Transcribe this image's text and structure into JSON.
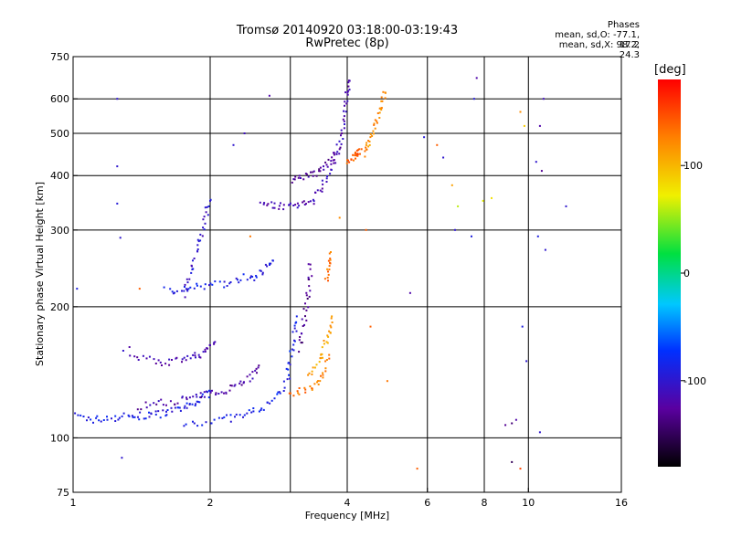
{
  "chart_data": {
    "type": "scatter",
    "title": "Tromsø 20140920 03:18:00-03:19:43",
    "subtitle": "RwPretec (8p)",
    "xlabel": "Frequency [MHz]",
    "ylabel": "Stationary phase Virtual Height [km]",
    "x_scale": "log",
    "y_scale": "log",
    "xlim": [
      1,
      16
    ],
    "ylim": [
      75,
      750
    ],
    "x_ticks": [
      1,
      2,
      4,
      6,
      8,
      10,
      16
    ],
    "x_tick_labels": [
      "1",
      "2",
      "4",
      "6",
      "8",
      "10",
      "16"
    ],
    "y_ticks": [
      75,
      100,
      200,
      300,
      400,
      500,
      600,
      750
    ],
    "y_tick_labels": [
      "75",
      "100",
      "200",
      "300",
      "400",
      "500",
      "600",
      "750"
    ],
    "x_grid": [
      2,
      3,
      4,
      6,
      8,
      10
    ],
    "y_grid": [
      100,
      200,
      300,
      400,
      500,
      600
    ],
    "legend_title": "Phases",
    "stats": [
      "mean, sd,O: -77.1, 17.2",
      "mean, sd,X: 98.2, 24.3"
    ],
    "colorbar": {
      "label": "[deg]",
      "range": [
        -180,
        180
      ],
      "ticks": [
        100,
        0,
        -100
      ],
      "tick_labels": [
        "100",
        "0",
        "-100"
      ]
    },
    "traces": [
      {
        "name": "",
        "phase": -90,
        "points": [
          [
            1.02,
            112
          ],
          [
            1.1,
            110
          ],
          [
            1.2,
            111
          ],
          [
            1.3,
            112
          ],
          [
            1.4,
            112
          ],
          [
            1.5,
            113
          ],
          [
            1.6,
            114
          ],
          [
            1.7,
            116
          ],
          [
            1.8,
            118
          ],
          [
            1.9,
            122
          ],
          [
            2.0,
            128
          ]
        ]
      },
      {
        "name": "",
        "phase": -120,
        "points": [
          [
            1.4,
            118
          ],
          [
            1.55,
            120
          ],
          [
            1.7,
            122
          ],
          [
            1.85,
            124
          ],
          [
            2.0,
            126
          ],
          [
            2.15,
            129
          ],
          [
            2.3,
            133
          ],
          [
            2.45,
            138
          ],
          [
            2.55,
            145
          ]
        ]
      },
      {
        "name": "",
        "phase": -115,
        "points": [
          [
            1.3,
            160
          ],
          [
            1.45,
            151
          ],
          [
            1.6,
            149
          ],
          [
            1.75,
            150
          ],
          [
            1.85,
            154
          ],
          [
            1.95,
            158
          ],
          [
            2.05,
            166
          ]
        ]
      },
      {
        "name": "",
        "phase": -85,
        "points": [
          [
            1.75,
            108
          ],
          [
            2.0,
            109
          ],
          [
            2.2,
            111
          ],
          [
            2.4,
            113
          ],
          [
            2.6,
            117
          ],
          [
            2.8,
            124
          ],
          [
            2.95,
            135
          ],
          [
            3.0,
            150
          ],
          [
            3.05,
            170
          ],
          [
            3.1,
            190
          ]
        ]
      },
      {
        "name": "",
        "phase": -90,
        "points": [
          [
            1.6,
            218
          ],
          [
            1.75,
            220
          ],
          [
            1.9,
            222
          ],
          [
            2.1,
            225
          ],
          [
            2.3,
            230
          ],
          [
            2.5,
            237
          ],
          [
            2.65,
            245
          ],
          [
            2.75,
            255
          ]
        ]
      },
      {
        "name": "",
        "phase": -100,
        "points": [
          [
            1.75,
            210
          ],
          [
            1.8,
            235
          ],
          [
            1.85,
            260
          ],
          [
            1.9,
            290
          ],
          [
            1.95,
            320
          ],
          [
            2.0,
            350
          ]
        ]
      },
      {
        "name": "",
        "phase": -115,
        "points": [
          [
            2.6,
            350
          ],
          [
            2.75,
            342
          ],
          [
            2.95,
            340
          ],
          [
            3.15,
            343
          ],
          [
            3.35,
            350
          ],
          [
            3.5,
            370
          ],
          [
            3.65,
            400
          ],
          [
            3.8,
            450
          ],
          [
            3.9,
            500
          ],
          [
            3.95,
            560
          ],
          [
            4.0,
            620
          ],
          [
            4.05,
            660
          ]
        ]
      },
      {
        "name": "",
        "phase": -125,
        "points": [
          [
            3.0,
            390
          ],
          [
            3.2,
            395
          ],
          [
            3.4,
            405
          ],
          [
            3.55,
            420
          ],
          [
            3.7,
            440
          ],
          [
            3.85,
            460
          ]
        ]
      },
      {
        "name": "",
        "phase": -130,
        "points": [
          [
            3.15,
            160
          ],
          [
            3.2,
            180
          ],
          [
            3.25,
            200
          ],
          [
            3.3,
            225
          ],
          [
            3.32,
            250
          ]
        ]
      },
      {
        "name": "",
        "phase": 130,
        "points": [
          [
            3.0,
            125
          ],
          [
            3.2,
            128
          ],
          [
            3.4,
            132
          ],
          [
            3.55,
            140
          ],
          [
            3.65,
            155
          ]
        ]
      },
      {
        "name": "",
        "phase": 110,
        "points": [
          [
            3.3,
            140
          ],
          [
            3.45,
            148
          ],
          [
            3.55,
            160
          ],
          [
            3.65,
            175
          ],
          [
            3.7,
            190
          ]
        ]
      },
      {
        "name": "",
        "phase": 120,
        "points": [
          [
            4.35,
            450
          ],
          [
            4.45,
            470
          ],
          [
            4.55,
            500
          ],
          [
            4.65,
            540
          ],
          [
            4.75,
            580
          ],
          [
            4.85,
            620
          ]
        ]
      },
      {
        "name": "",
        "phase": 140,
        "points": [
          [
            4.0,
            430
          ],
          [
            4.1,
            440
          ],
          [
            4.2,
            450
          ],
          [
            4.3,
            460
          ]
        ]
      },
      {
        "name": "",
        "phase": 130,
        "points": [
          [
            3.6,
            230
          ],
          [
            3.63,
            250
          ],
          [
            3.66,
            265
          ]
        ]
      }
    ],
    "scatter": [
      {
        "x": 1.25,
        "y": 600,
        "phase": -100
      },
      {
        "x": 1.25,
        "y": 420,
        "phase": -100
      },
      {
        "x": 1.25,
        "y": 345,
        "phase": -95
      },
      {
        "x": 1.27,
        "y": 288,
        "phase": -100
      },
      {
        "x": 1.4,
        "y": 220,
        "phase": 140
      },
      {
        "x": 1.28,
        "y": 90,
        "phase": -100
      },
      {
        "x": 1.02,
        "y": 220,
        "phase": -90
      },
      {
        "x": 2.38,
        "y": 500,
        "phase": -110
      },
      {
        "x": 2.7,
        "y": 610,
        "phase": -120
      },
      {
        "x": 2.25,
        "y": 470,
        "phase": -100
      },
      {
        "x": 2.45,
        "y": 290,
        "phase": 130
      },
      {
        "x": 2.5,
        "y": 230,
        "phase": -95
      },
      {
        "x": 3.85,
        "y": 320,
        "phase": 120
      },
      {
        "x": 4.5,
        "y": 180,
        "phase": 140
      },
      {
        "x": 4.4,
        "y": 300,
        "phase": 140
      },
      {
        "x": 5.5,
        "y": 215,
        "phase": -120
      },
      {
        "x": 5.9,
        "y": 490,
        "phase": -95
      },
      {
        "x": 6.3,
        "y": 470,
        "phase": 140
      },
      {
        "x": 6.5,
        "y": 440,
        "phase": -100
      },
      {
        "x": 6.8,
        "y": 380,
        "phase": 110
      },
      {
        "x": 7.0,
        "y": 340,
        "phase": 60
      },
      {
        "x": 6.9,
        "y": 300,
        "phase": -100
      },
      {
        "x": 7.5,
        "y": 290,
        "phase": -90
      },
      {
        "x": 7.6,
        "y": 600,
        "phase": -95
      },
      {
        "x": 7.7,
        "y": 670,
        "phase": -120
      },
      {
        "x": 7.95,
        "y": 350,
        "phase": 70
      },
      {
        "x": 8.3,
        "y": 355,
        "phase": 80
      },
      {
        "x": 8.9,
        "y": 107,
        "phase": -130
      },
      {
        "x": 9.2,
        "y": 108,
        "phase": -140
      },
      {
        "x": 9.4,
        "y": 110,
        "phase": -120
      },
      {
        "x": 9.6,
        "y": 560,
        "phase": 120
      },
      {
        "x": 9.8,
        "y": 520,
        "phase": 90
      },
      {
        "x": 9.7,
        "y": 180,
        "phase": -90
      },
      {
        "x": 9.9,
        "y": 150,
        "phase": -100
      },
      {
        "x": 9.2,
        "y": 88,
        "phase": -150
      },
      {
        "x": 9.6,
        "y": 85,
        "phase": 150
      },
      {
        "x": 10.8,
        "y": 600,
        "phase": -110
      },
      {
        "x": 10.6,
        "y": 520,
        "phase": -120
      },
      {
        "x": 10.4,
        "y": 430,
        "phase": -100
      },
      {
        "x": 10.7,
        "y": 410,
        "phase": -130
      },
      {
        "x": 10.5,
        "y": 290,
        "phase": -90
      },
      {
        "x": 10.9,
        "y": 270,
        "phase": -100
      },
      {
        "x": 10.6,
        "y": 103,
        "phase": -100
      },
      {
        "x": 12.1,
        "y": 340,
        "phase": -100
      },
      {
        "x": 5.7,
        "y": 85,
        "phase": 140
      },
      {
        "x": 4.9,
        "y": 135,
        "phase": 130
      }
    ]
  }
}
